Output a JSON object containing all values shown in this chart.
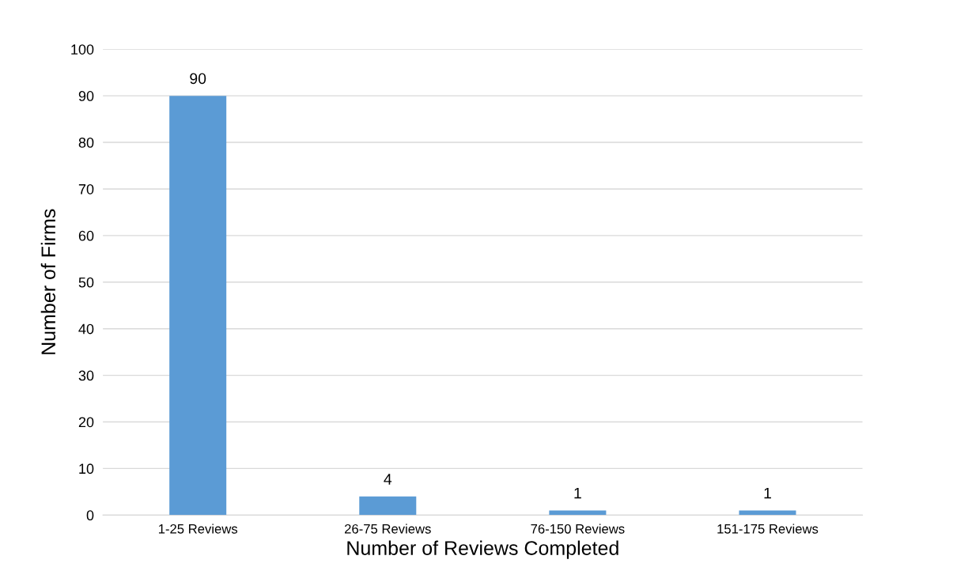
{
  "chart_data": {
    "type": "bar",
    "xlabel": "Number of Reviews Completed",
    "ylabel": "Number of Firms",
    "categories": [
      "1-25 Reviews",
      "26-75 Reviews",
      "76-150 Reviews",
      "151-175 Reviews"
    ],
    "values": [
      90,
      4,
      1,
      1
    ],
    "color": "#5b9bd5",
    "ylim": [
      0,
      100
    ],
    "yticks": [
      0,
      10,
      20,
      30,
      40,
      50,
      60,
      70,
      80,
      90,
      100
    ],
    "grid": "y",
    "data_labels": true,
    "legend": false
  }
}
